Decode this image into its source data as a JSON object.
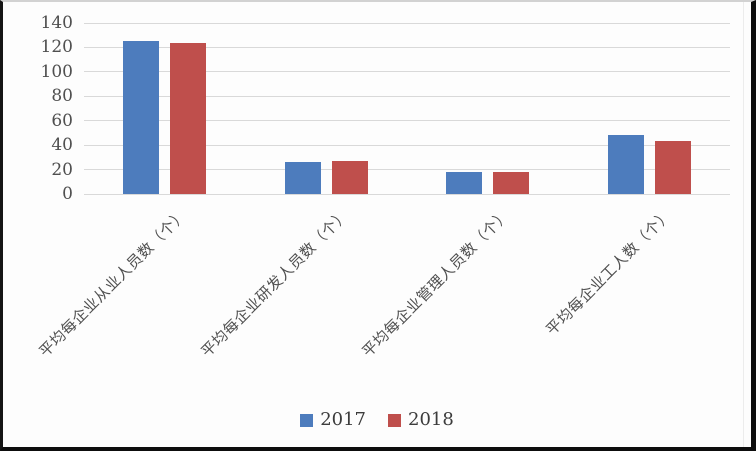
{
  "chart_data": {
    "type": "bar",
    "title": "",
    "xlabel": "",
    "ylabel": "",
    "categories": [
      "平均每企业从业人员数（个）",
      "平均每企业研发人员数（个）",
      "平均每企业管理人员数（个）",
      "平均每企业工人数（个）"
    ],
    "series": [
      {
        "name": "2017",
        "color": "#4d7cbd",
        "values": [
          125,
          26,
          18,
          48
        ]
      },
      {
        "name": "2018",
        "color": "#bf4f4c",
        "values": [
          124,
          27,
          18,
          43
        ]
      }
    ],
    "ylim": [
      0,
      140
    ],
    "yticks": [
      0,
      20,
      40,
      60,
      80,
      100,
      120,
      140
    ],
    "grid": true,
    "gridline_color": "#d9d9d9",
    "axis_text_color": "#4f4f4f",
    "legend_position": "bottom",
    "legend_labels": [
      "2017",
      "2018"
    ],
    "category_label_rotation_deg": 45
  }
}
